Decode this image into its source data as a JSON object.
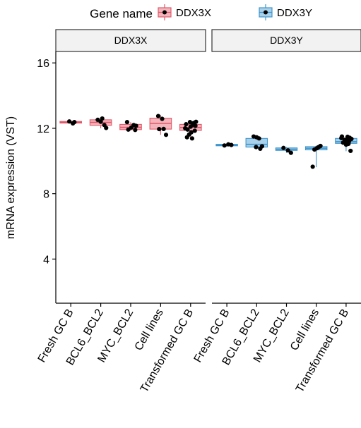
{
  "chart_data": {
    "type": "box",
    "legend": {
      "title": "Gene name",
      "position": "top",
      "entries": [
        {
          "label": "DDX3X",
          "fill": "#f4b4bc",
          "stroke": "#e0596a"
        },
        {
          "label": "DDX3Y",
          "fill": "#a9d1ea",
          "stroke": "#3f95cc"
        }
      ]
    },
    "ylabel": "mRNA expression (VST)",
    "ylim": [
      1.3,
      16.7
    ],
    "yticks": [
      4,
      8,
      12,
      16
    ],
    "categories": [
      "Fresh GC B",
      "BCL6_BCL2",
      "MYC_BCL2",
      "Cell lines",
      "Transformed GC B"
    ],
    "panels": [
      {
        "title": "DDX3X",
        "fill": "#f4b4bc",
        "stroke": "#e0596a",
        "boxes": [
          {
            "category": "Fresh GC B",
            "q1": 12.32,
            "median": 12.36,
            "q3": 12.42,
            "min": 12.27,
            "max": 12.47,
            "points": [
              [
                -0.05,
                12.42
              ],
              [
                0.07,
                12.3
              ],
              [
                0.12,
                12.38
              ]
            ]
          },
          {
            "category": "BCL6_BCL2",
            "q1": 12.18,
            "median": 12.36,
            "q3": 12.52,
            "min": 12.0,
            "max": 12.62,
            "points": [
              [
                -0.1,
                12.52
              ],
              [
                0.05,
                12.6
              ],
              [
                0.12,
                12.2
              ],
              [
                0.18,
                12.02
              ],
              [
                0.0,
                12.4
              ]
            ]
          },
          {
            "category": "MYC_BCL2",
            "q1": 11.92,
            "median": 12.06,
            "q3": 12.24,
            "min": 11.86,
            "max": 12.38,
            "points": [
              [
                -0.12,
                12.38
              ],
              [
                -0.08,
                11.92
              ],
              [
                0.1,
                12.2
              ],
              [
                0.15,
                11.9
              ],
              [
                0.02,
                12.05
              ],
              [
                0.18,
                12.15
              ]
            ]
          },
          {
            "category": "Cell lines",
            "q1": 11.95,
            "median": 12.3,
            "q3": 12.62,
            "min": 11.6,
            "max": 12.8,
            "points": [
              [
                -0.08,
                12.75
              ],
              [
                0.05,
                12.58
              ],
              [
                -0.05,
                11.95
              ],
              [
                0.1,
                11.96
              ],
              [
                0.18,
                11.6
              ]
            ]
          },
          {
            "category": "Transformed GC B",
            "q1": 11.87,
            "median": 12.05,
            "q3": 12.24,
            "min": 11.35,
            "max": 12.42,
            "points": [
              [
                -0.15,
                12.25
              ],
              [
                -0.1,
                11.92
              ],
              [
                -0.05,
                11.62
              ],
              [
                0.0,
                12.1
              ],
              [
                0.05,
                11.38
              ],
              [
                0.1,
                12.32
              ],
              [
                0.14,
                11.85
              ],
              [
                0.18,
                12.4
              ],
              [
                -0.18,
                12.0
              ],
              [
                0.02,
                11.75
              ],
              [
                0.16,
                12.15
              ],
              [
                -0.12,
                11.45
              ],
              [
                0.08,
                12.22
              ],
              [
                -0.02,
                12.38
              ]
            ]
          }
        ]
      },
      {
        "title": "DDX3Y",
        "fill": "#a9d1ea",
        "stroke": "#3f95cc",
        "boxes": [
          {
            "category": "Fresh GC B",
            "q1": 10.93,
            "median": 10.97,
            "q3": 11.02,
            "min": 10.88,
            "max": 11.05,
            "points": [
              [
                -0.08,
                10.95
              ],
              [
                0.05,
                11.02
              ],
              [
                0.15,
                10.98
              ]
            ]
          },
          {
            "category": "BCL6_BCL2",
            "q1": 10.85,
            "median": 11.02,
            "q3": 11.38,
            "min": 10.72,
            "max": 11.52,
            "points": [
              [
                -0.1,
                11.5
              ],
              [
                0.08,
                11.38
              ],
              [
                -0.02,
                10.85
              ],
              [
                0.12,
                10.75
              ],
              [
                0.18,
                10.9
              ],
              [
                0.0,
                11.45
              ]
            ]
          },
          {
            "category": "MYC_BCL2",
            "q1": 10.65,
            "median": 10.72,
            "q3": 10.8,
            "min": 10.5,
            "max": 10.85,
            "points": [
              [
                -0.1,
                10.8
              ],
              [
                0.05,
                10.65
              ],
              [
                0.15,
                10.5
              ]
            ]
          },
          {
            "category": "Cell lines",
            "q1": 10.68,
            "median": 10.78,
            "q3": 10.88,
            "min": 9.62,
            "max": 10.95,
            "points": [
              [
                -0.06,
                10.7
              ],
              [
                0.08,
                10.85
              ],
              [
                0.14,
                10.92
              ],
              [
                -0.12,
                9.65
              ],
              [
                0.02,
                10.78
              ]
            ]
          },
          {
            "category": "Transformed GC B",
            "q1": 11.08,
            "median": 11.18,
            "q3": 11.38,
            "min": 10.6,
            "max": 11.55,
            "points": [
              [
                -0.16,
                11.4
              ],
              [
                -0.1,
                11.12
              ],
              [
                -0.05,
                11.3
              ],
              [
                0.0,
                11.0
              ],
              [
                0.05,
                11.48
              ],
              [
                0.1,
                11.2
              ],
              [
                0.15,
                10.62
              ],
              [
                0.18,
                11.35
              ],
              [
                -0.14,
                11.5
              ],
              [
                0.02,
                11.25
              ],
              [
                0.12,
                11.42
              ],
              [
                -0.02,
                11.1
              ],
              [
                0.08,
                11.05
              ]
            ]
          }
        ]
      }
    ]
  }
}
